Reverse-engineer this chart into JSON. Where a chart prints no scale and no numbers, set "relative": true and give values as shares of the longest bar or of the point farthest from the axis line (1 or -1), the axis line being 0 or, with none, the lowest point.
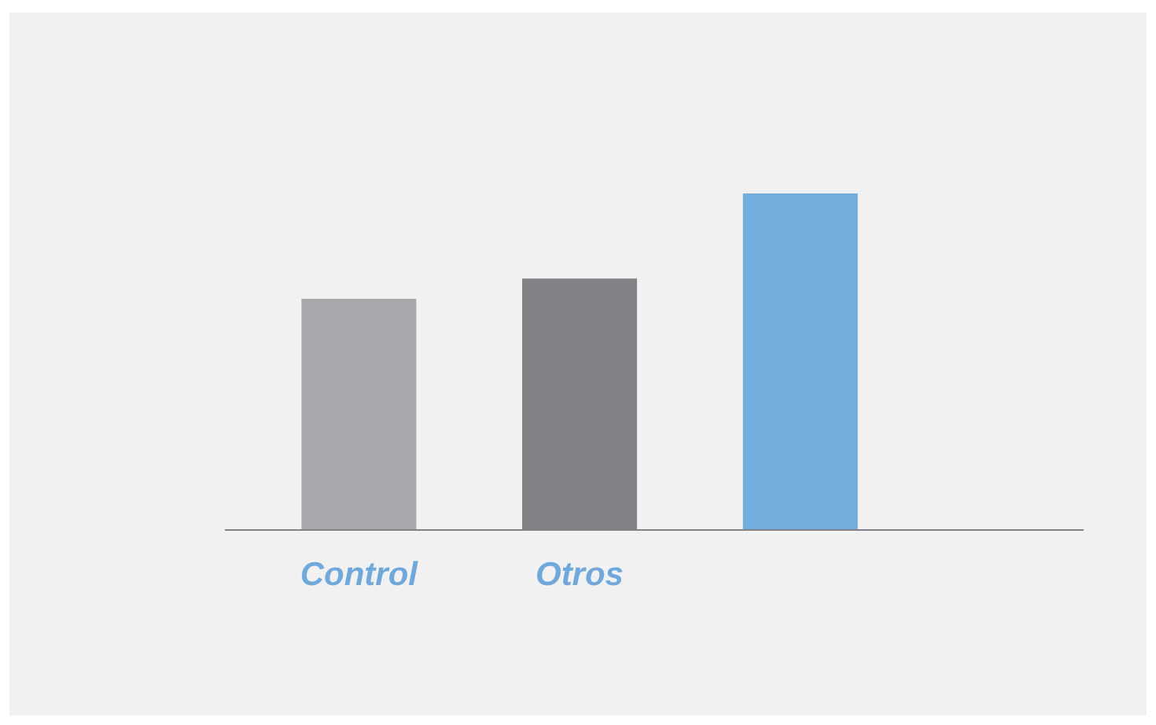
{
  "chart_data": {
    "type": "bar",
    "relative": true,
    "categories": [
      "Control",
      "Otros",
      null
    ],
    "values": [
      0.687,
      0.747,
      1
    ],
    "colors": [
      "#a7a9ac",
      "#808285",
      "#72aedd"
    ]
  }
}
